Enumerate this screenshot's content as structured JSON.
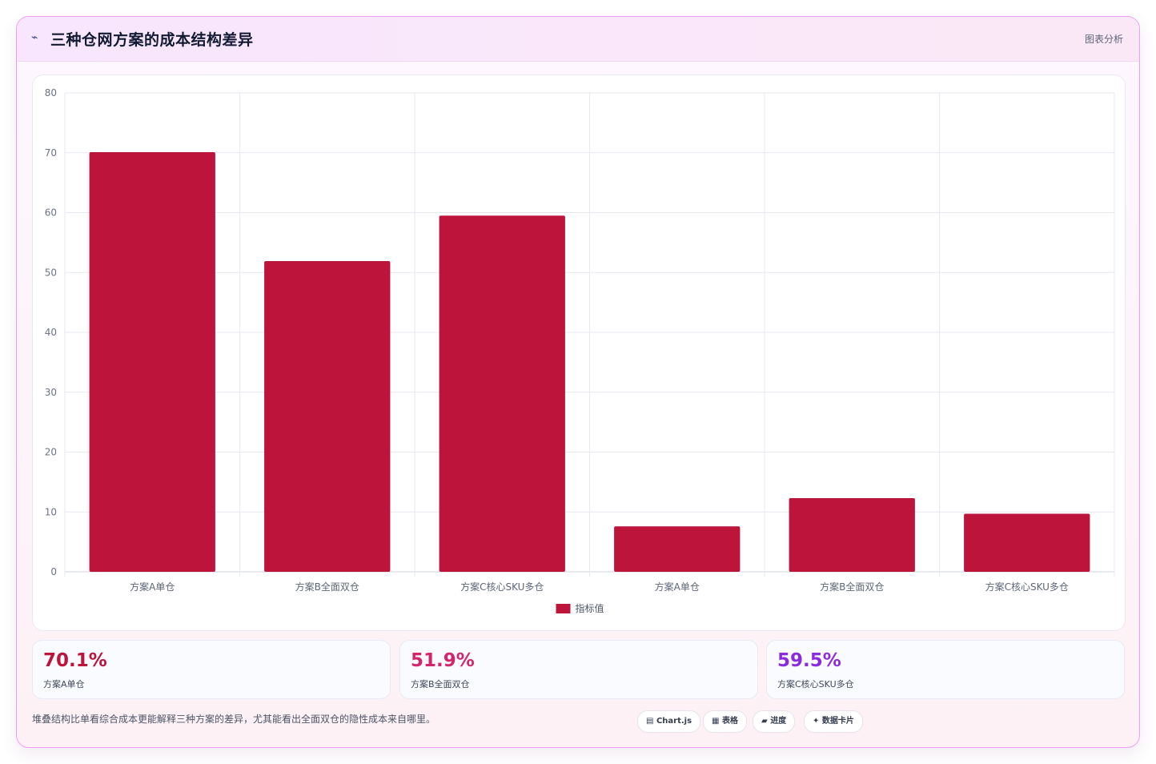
{
  "header": {
    "title_icon": "chart-line-icon",
    "title": "三种仓网方案的成本结构差异",
    "tag": "图表分析"
  },
  "chart_data": {
    "type": "bar",
    "categories": [
      "方案A单仓",
      "方案B全面双仓",
      "方案C核心SKU多仓",
      "方案A单仓",
      "方案B全面双仓",
      "方案C核心SKU多仓"
    ],
    "series": [
      {
        "name": "指标值",
        "values": [
          70.1,
          51.9,
          59.5,
          7.6,
          12.3,
          9.7
        ]
      }
    ],
    "ylim": [
      0,
      80
    ],
    "yticks": [
      0,
      10,
      20,
      30,
      40,
      50,
      60,
      70,
      80
    ],
    "grid": true,
    "legend": "bottom",
    "bar_color": "#bd143c",
    "xlabel": "",
    "ylabel": ""
  },
  "stats": [
    {
      "value": "70.1%",
      "label": "方案A单仓",
      "color": "#bd143c"
    },
    {
      "value": "51.9%",
      "label": "方案B全面双仓",
      "color": "#d2256b"
    },
    {
      "value": "59.5%",
      "label": "方案C核心SKU多仓",
      "color": "#8b2be0"
    }
  ],
  "footnote": "堆叠结构比单看综合成本更能解释三种方案的差异，尤其能看出全面双仓的隐性成本来自哪里。",
  "chips": [
    {
      "icon": "table-icon",
      "glyph": "▤",
      "label": "Chart.js"
    },
    {
      "icon": "grid-icon",
      "glyph": "▦",
      "label": "表格"
    },
    {
      "icon": "progress-icon",
      "glyph": "▰",
      "label": "进度"
    },
    {
      "icon": "sparkle-icon",
      "glyph": "✦",
      "label": "数据卡片"
    }
  ]
}
